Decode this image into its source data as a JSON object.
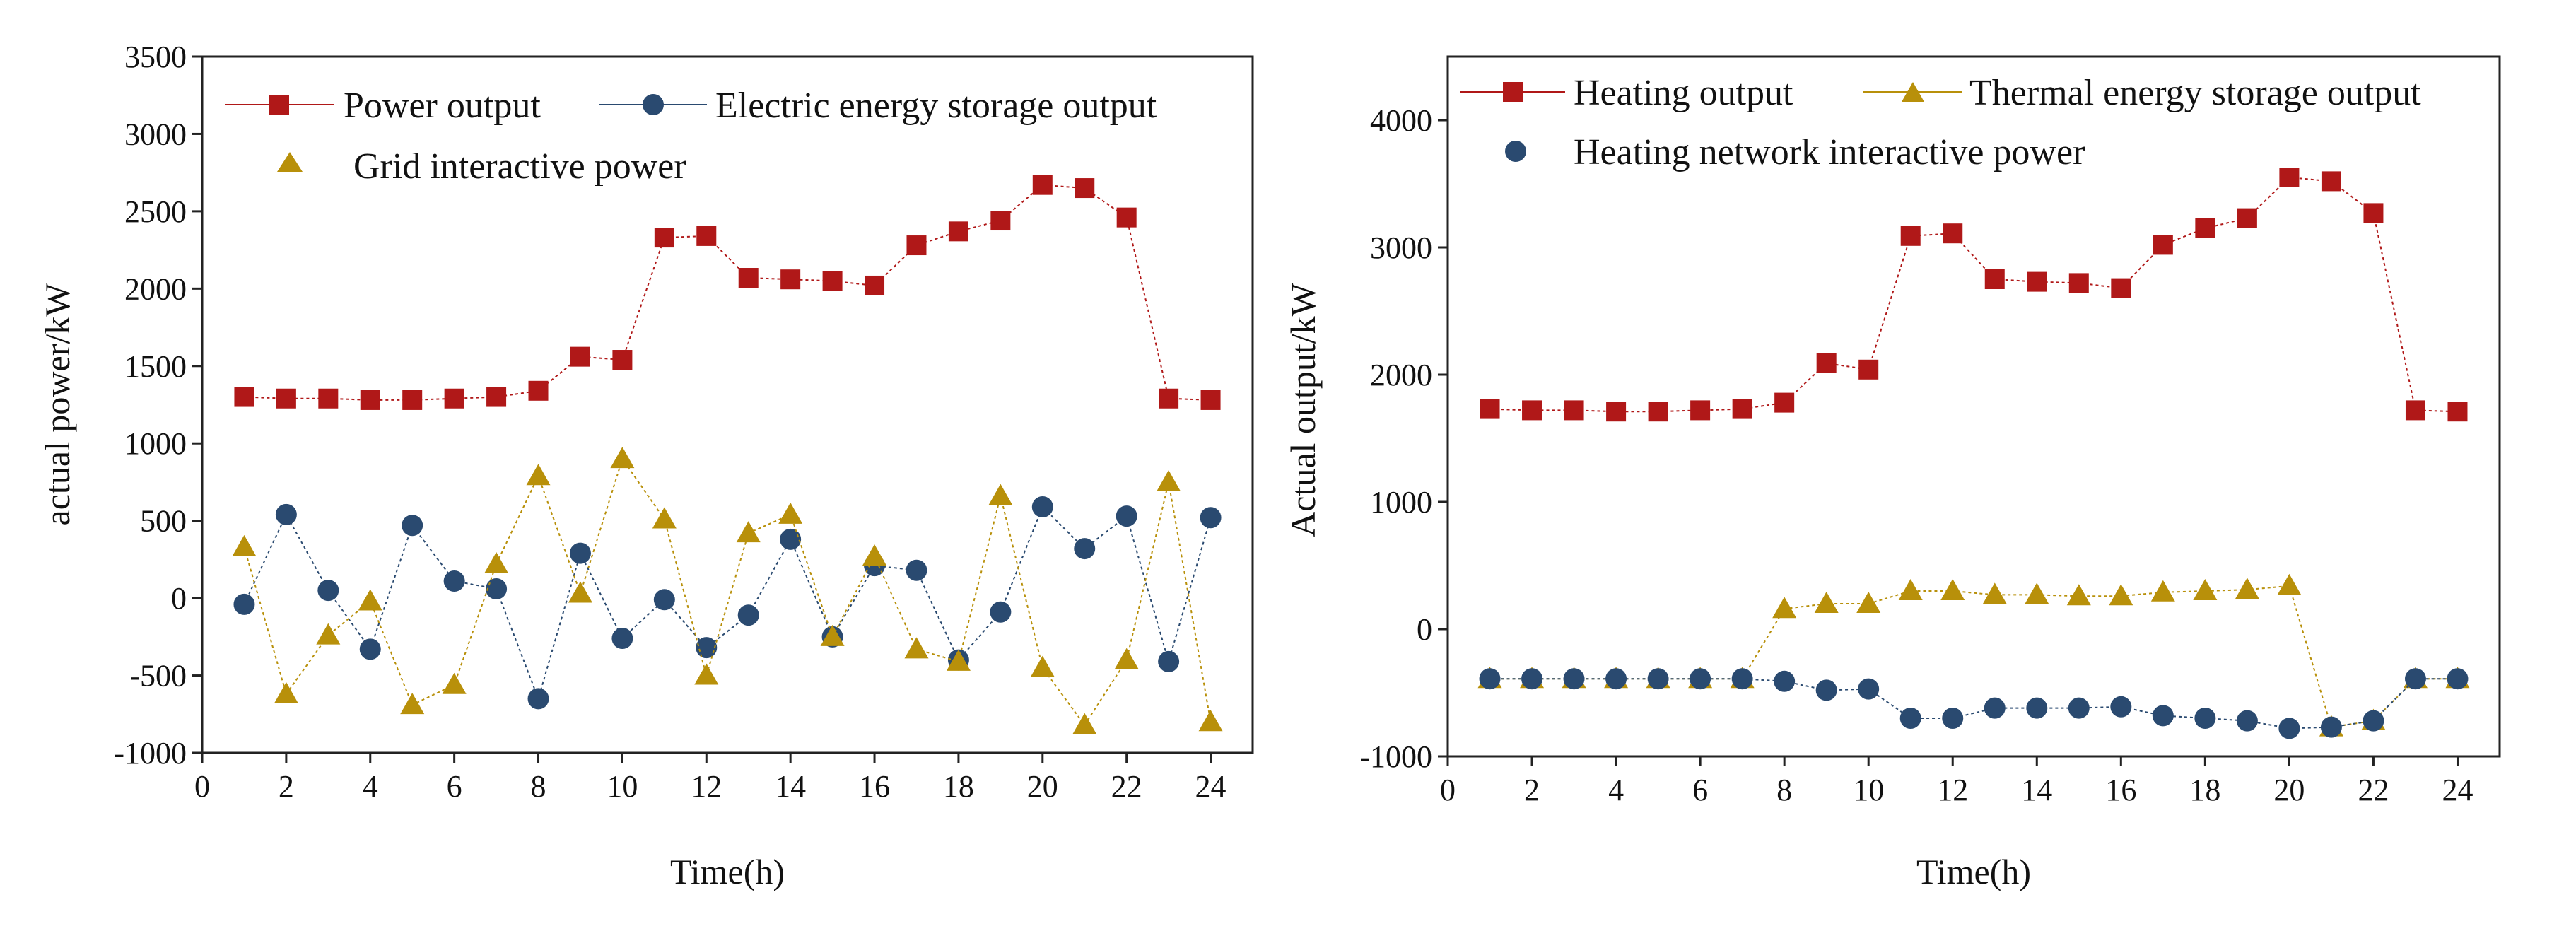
{
  "chart_data": [
    {
      "type": "line",
      "title": "",
      "xlabel": "Time(h)",
      "ylabel": "actual power/kW",
      "xlim": [
        0,
        25
      ],
      "ylim": [
        -1000,
        3500
      ],
      "xticks": [
        0,
        2,
        4,
        6,
        8,
        10,
        12,
        14,
        16,
        18,
        20,
        22,
        24
      ],
      "yticks": [
        -1000,
        -500,
        0,
        500,
        1000,
        1500,
        2000,
        2500,
        3000,
        3500
      ],
      "grid": false,
      "legend_position": "top",
      "x": [
        1,
        2,
        3,
        4,
        5,
        6,
        7,
        8,
        9,
        10,
        11,
        12,
        13,
        14,
        15,
        16,
        17,
        18,
        19,
        20,
        21,
        22,
        23,
        24
      ],
      "series": [
        {
          "name": "Power output",
          "color": "#b01818",
          "marker": "square",
          "values": [
            1300,
            1290,
            1290,
            1280,
            1280,
            1290,
            1300,
            1340,
            1560,
            1540,
            2330,
            2340,
            2070,
            2060,
            2050,
            2020,
            2280,
            2370,
            2440,
            2670,
            2650,
            2460,
            1290,
            1280
          ]
        },
        {
          "name": "Electric energy storage output",
          "color": "#2a4a70",
          "marker": "circle",
          "values": [
            -40,
            540,
            50,
            -330,
            470,
            110,
            60,
            -650,
            290,
            -260,
            -10,
            -320,
            -110,
            380,
            -250,
            210,
            180,
            -400,
            -90,
            590,
            320,
            530,
            -410,
            520
          ]
        },
        {
          "name": "Grid interactive power",
          "color": "#b8900a",
          "marker": "triangle",
          "values": [
            330,
            -620,
            -240,
            -20,
            -690,
            -560,
            220,
            790,
            30,
            900,
            510,
            -500,
            420,
            540,
            -250,
            270,
            -330,
            -410,
            660,
            -450,
            -820,
            -400,
            750,
            -800
          ]
        }
      ]
    },
    {
      "type": "line",
      "title": "",
      "xlabel": "Time(h)",
      "ylabel": "Actual output/kW",
      "xlim": [
        0,
        25
      ],
      "ylim": [
        -1000,
        4500
      ],
      "xticks": [
        0,
        2,
        4,
        6,
        8,
        10,
        12,
        14,
        16,
        18,
        20,
        22,
        24
      ],
      "yticks": [
        -1000,
        0,
        1000,
        2000,
        3000,
        4000
      ],
      "grid": false,
      "legend_position": "top",
      "x": [
        1,
        2,
        3,
        4,
        5,
        6,
        7,
        8,
        9,
        10,
        11,
        12,
        13,
        14,
        15,
        16,
        17,
        18,
        19,
        20,
        21,
        22,
        23,
        24
      ],
      "series": [
        {
          "name": "Heating output",
          "color": "#b01818",
          "marker": "square",
          "values": [
            1730,
            1720,
            1720,
            1710,
            1710,
            1720,
            1730,
            1780,
            2090,
            2040,
            3090,
            3110,
            2750,
            2730,
            2720,
            2680,
            3020,
            3150,
            3230,
            3550,
            3520,
            3270,
            1720,
            1710
          ]
        },
        {
          "name": "Thermal energy storage output",
          "color": "#b8900a",
          "marker": "triangle",
          "values": [
            -390,
            -390,
            -390,
            -390,
            -390,
            -390,
            -390,
            160,
            200,
            200,
            300,
            300,
            270,
            270,
            260,
            260,
            290,
            300,
            310,
            340,
            -770,
            -720,
            -390,
            -390
          ]
        },
        {
          "name": "Heating network interactive power",
          "color": "#2a4a70",
          "marker": "circle",
          "values": [
            -390,
            -390,
            -390,
            -390,
            -390,
            -390,
            -390,
            -410,
            -480,
            -470,
            -700,
            -700,
            -620,
            -620,
            -620,
            -610,
            -680,
            -700,
            -720,
            -780,
            -770,
            -720,
            -390,
            -390
          ]
        }
      ]
    }
  ]
}
